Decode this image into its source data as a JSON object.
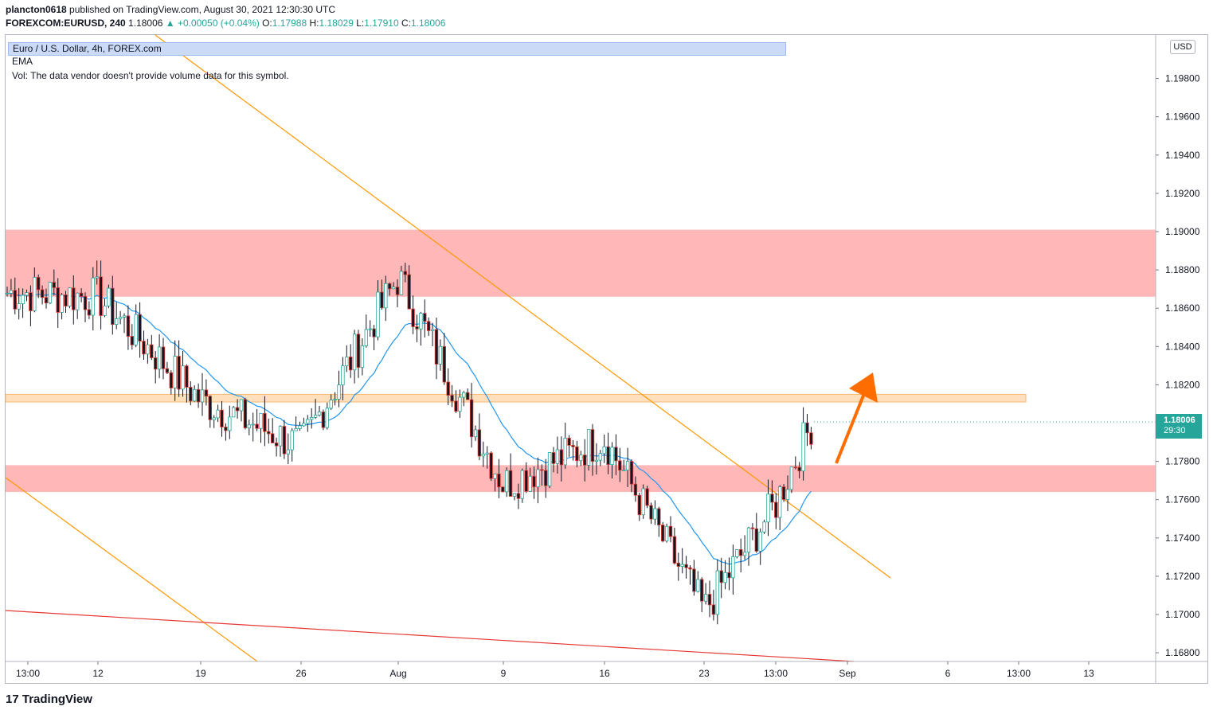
{
  "header": {
    "publisher": "plancton0618",
    "published_text": "published on TradingView.com, August 30, 2021 12:30:30 UTC",
    "symbol": "FOREXCOM:EURUSD, 240",
    "last": "1.18006",
    "change": "▲ +0.00050 (+0.04%)",
    "open_label": "O:",
    "open": "1.17988",
    "high_label": "H:",
    "high": "1.18029",
    "low_label": "L:",
    "low": "1.17910",
    "close_label": "C:",
    "close": "1.18006"
  },
  "legend": {
    "title": "Euro / U.S. Dollar, 4h, FOREX.com",
    "ema": "EMA",
    "vol": "Vol: The data vendor doesn't provide volume data for this symbol."
  },
  "currency": "USD",
  "price_tag": {
    "price": "1.18006",
    "countdown": "29:30"
  },
  "footer": {
    "logo_text": "TradingView"
  },
  "colors": {
    "up": "#26a69a",
    "candle": "#131722",
    "ema": "#2196f3",
    "zone": "#f56565",
    "orange": "#ff9800",
    "arrow": "#ff6d00",
    "redline": "#e53935"
  },
  "chart_data": {
    "type": "line",
    "title": "Euro / U.S. Dollar, 4h, FOREX.com",
    "yaxis": {
      "ticks": [
        "1.19800",
        "1.19600",
        "1.19400",
        "1.19200",
        "1.19000",
        "1.18800",
        "1.18600",
        "1.18400",
        "1.18200",
        "1.17800",
        "1.17600",
        "1.17400",
        "1.17200",
        "1.17000",
        "1.16800"
      ],
      "range": [
        1.1672,
        1.2005
      ]
    },
    "xaxis": {
      "ticks": [
        "13:00",
        "12",
        "19",
        "26",
        "Aug",
        "9",
        "16",
        "23",
        "13:00",
        "Sep",
        "6",
        "13:00",
        "13"
      ]
    },
    "zones": [
      {
        "name": "resistance",
        "from": 1.1866,
        "to": 1.1901
      },
      {
        "name": "level",
        "from": 1.1811,
        "to": 1.1815
      },
      {
        "name": "support",
        "from": 1.1764,
        "to": 1.1778
      }
    ],
    "series": [
      {
        "points": [
          [
            "13:00",
            1.1868
          ],
          [
            "12",
            1.1866
          ],
          [
            "19",
            1.1812
          ],
          [
            "26",
            1.1788
          ],
          [
            "Aug",
            1.1876
          ],
          [
            "9",
            1.1768
          ],
          [
            "16",
            1.1792
          ],
          [
            "23",
            1.1702
          ],
          [
            "13:00",
            1.1758
          ],
          [
            "Aug 30",
            1.18006
          ]
        ]
      }
    ]
  }
}
